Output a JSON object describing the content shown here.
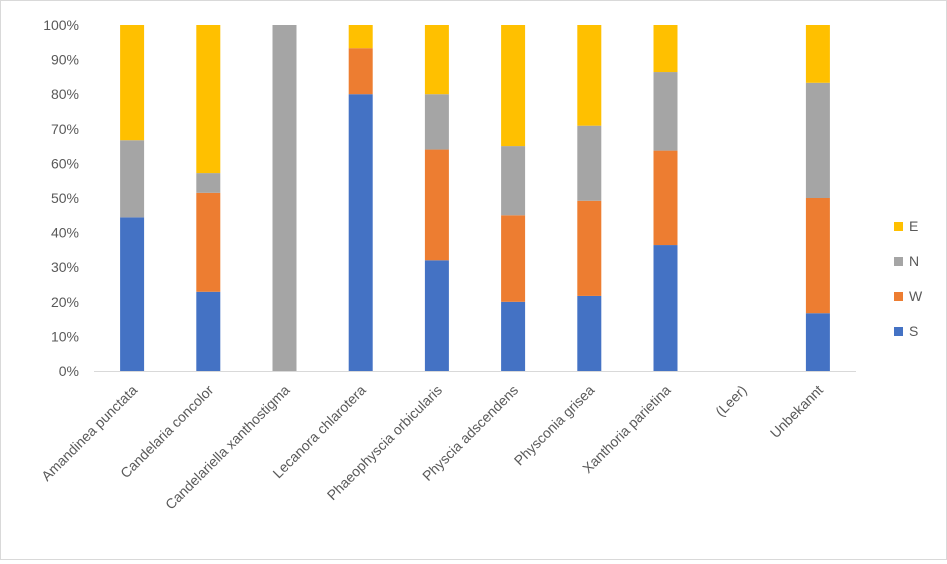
{
  "chart_data": {
    "type": "bar",
    "stacked": true,
    "percent_stacked": true,
    "title": "",
    "xlabel": "",
    "ylabel": "",
    "ylim": [
      0,
      100
    ],
    "y_ticks": [
      "0%",
      "10%",
      "20%",
      "30%",
      "40%",
      "50%",
      "60%",
      "70%",
      "80%",
      "90%",
      "100%"
    ],
    "grid": false,
    "legend_position": "right",
    "categories": [
      "Amandinea punctata",
      "Candelaria concolor",
      "Candelariella xanthostigma",
      "Lecanora chlarotera",
      "Phaeophyscia orbicularis",
      "Physcia adscendens",
      "Physconia grisea",
      "Xanthoria parietina",
      "(Leer)",
      "Unbekannt"
    ],
    "series": [
      {
        "name": "S",
        "color": "#4472C4",
        "values": [
          44.4,
          22.9,
          0,
          80,
          32,
          20,
          21.7,
          36.4,
          0,
          16.7
        ]
      },
      {
        "name": "W",
        "color": "#ED7D31",
        "values": [
          0,
          28.6,
          0,
          13.3,
          32,
          25,
          27.5,
          27.3,
          0,
          33.3
        ]
      },
      {
        "name": "N",
        "color": "#A5A5A5",
        "values": [
          22.3,
          5.7,
          100,
          0,
          16,
          20,
          21.7,
          22.7,
          0,
          33.3
        ]
      },
      {
        "name": "E",
        "color": "#FFC000",
        "values": [
          33.3,
          42.8,
          0,
          6.7,
          20,
          35,
          29.1,
          13.6,
          0,
          16.7
        ]
      }
    ],
    "legend_order": [
      "E",
      "N",
      "W",
      "S"
    ]
  }
}
